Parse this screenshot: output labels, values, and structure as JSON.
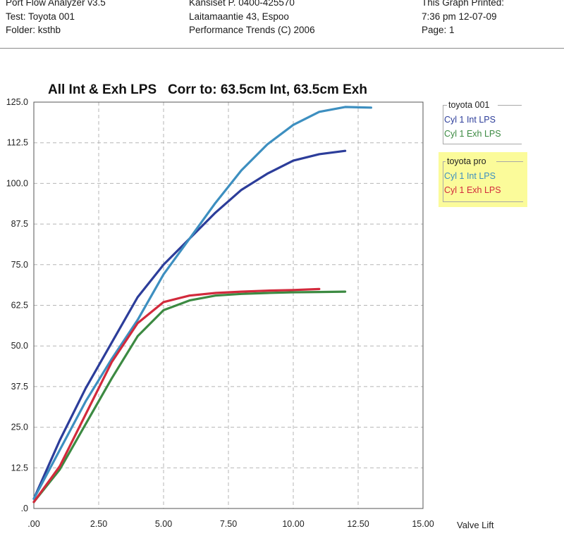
{
  "header": {
    "left": [
      "Port Flow Analyzer v3.5",
      "Test: Toyota 001",
      "Folder: ksthb"
    ],
    "middle": [
      "Kansiset   P. 0400-425570",
      "Laitamaantie 43, Espoo",
      "Performance Trends (C) 2006"
    ],
    "right": [
      "This Graph Printed:",
      "7:36 pm 12-07-09",
      "Page: 1"
    ]
  },
  "colors": {
    "toyota001_int": "#2c3d9a",
    "toyota001_exh": "#3c8a42",
    "toyotapro_int": "#3d8fc0",
    "toyotapro_exh": "#d22a3c",
    "grid": "#b5b5b5",
    "legend_highlight": "#fbfb9a"
  },
  "chart_data": {
    "type": "line",
    "title": "All Int & Exh LPS   Corr to: 63.5cm Int, 63.5cm Exh",
    "xlabel": "Valve Lift",
    "ylabel": "",
    "xlim": [
      0,
      15.0
    ],
    "ylim": [
      0,
      125.0
    ],
    "x_ticks": [
      ".00",
      "2.50",
      "5.00",
      "7.50",
      "10.00",
      "12.50",
      "15.00"
    ],
    "y_ticks": [
      ".0",
      "12.5",
      "25.0",
      "37.5",
      "50.0",
      "62.5",
      "75.0",
      "87.5",
      "100.0",
      "112.5",
      "125.0"
    ],
    "grid": true,
    "legend_groups": [
      {
        "title": "toyota 001",
        "highlight": false,
        "entries": [
          {
            "label": "Cyl 1 Int LPS",
            "series": 0
          },
          {
            "label": "Cyl 1 Exh LPS",
            "series": 1
          }
        ]
      },
      {
        "title": "toyota pro",
        "highlight": true,
        "entries": [
          {
            "label": "Cyl 1 Int LPS",
            "series": 2
          },
          {
            "label": "Cyl 1 Exh LPS",
            "series": 3
          }
        ]
      }
    ],
    "series": [
      {
        "group": "toyota 001",
        "name": "Cyl 1 Int LPS",
        "color": "#2c3d9a",
        "x": [
          0,
          1,
          2,
          3,
          4,
          5,
          6,
          7,
          8,
          9,
          10,
          11,
          12
        ],
        "y": [
          3,
          21,
          37,
          51,
          65,
          75,
          83,
          91,
          98,
          103,
          107,
          109,
          110
        ]
      },
      {
        "group": "toyota 001",
        "name": "Cyl 1 Exh LPS",
        "color": "#3c8a42",
        "x": [
          0,
          1,
          2,
          3,
          4,
          5,
          6,
          7,
          8,
          9,
          10,
          11,
          12
        ],
        "y": [
          2,
          12,
          26,
          40,
          53,
          61,
          64,
          65.5,
          66,
          66.3,
          66.5,
          66.6,
          66.7
        ]
      },
      {
        "group": "toyota pro",
        "name": "Cyl 1 Int LPS",
        "color": "#3d8fc0",
        "x": [
          0,
          1,
          2,
          3,
          4,
          5,
          6,
          7,
          8,
          9,
          10,
          11,
          12,
          13
        ],
        "y": [
          3,
          18,
          33,
          46,
          58,
          72,
          83,
          94,
          104,
          112,
          118,
          122,
          123.5,
          123.3
        ]
      },
      {
        "group": "toyota pro",
        "name": "Cyl 1 Exh LPS",
        "color": "#d22a3c",
        "x": [
          0,
          1,
          2,
          3,
          4,
          5,
          6,
          7,
          8,
          9,
          10,
          11
        ],
        "y": [
          2,
          13,
          29,
          45,
          57,
          63.5,
          65.5,
          66.3,
          66.7,
          67,
          67.2,
          67.5
        ]
      }
    ]
  }
}
